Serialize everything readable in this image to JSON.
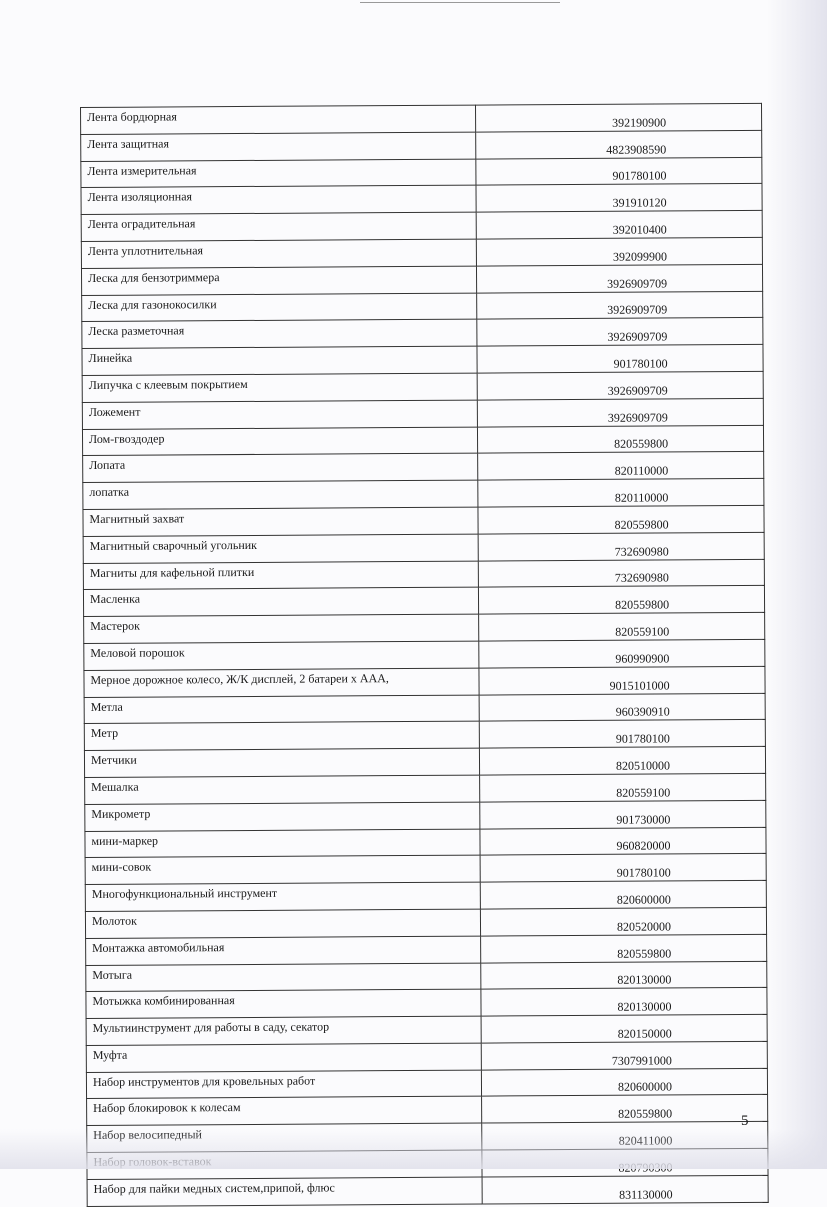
{
  "rows": [
    {
      "name": "Лента бордюрная",
      "code": "392190900"
    },
    {
      "name": "Лента защитная",
      "code": "4823908590"
    },
    {
      "name": "Лента измерительная",
      "code": "901780100"
    },
    {
      "name": "Лента изоляционная",
      "code": "391910120"
    },
    {
      "name": "Лента оградительная",
      "code": "392010400"
    },
    {
      "name": "Лента уплотнительная",
      "code": "392099900"
    },
    {
      "name": "Леска для бензотриммера",
      "code": "3926909709"
    },
    {
      "name": "Леска для газонокосилки",
      "code": "3926909709"
    },
    {
      "name": "Леска разметочная",
      "code": "3926909709"
    },
    {
      "name": "Линейка",
      "code": "901780100"
    },
    {
      "name": "Липучка с клеевым покрытием",
      "code": "3926909709"
    },
    {
      "name": "Ложемент",
      "code": "3926909709"
    },
    {
      "name": "Лом-гвоздодер",
      "code": "820559800"
    },
    {
      "name": "Лопата",
      "code": "820110000"
    },
    {
      "name": "лопатка",
      "code": "820110000"
    },
    {
      "name": "Магнитный захват",
      "code": "820559800"
    },
    {
      "name": "Магнитный сварочный угольник",
      "code": "732690980"
    },
    {
      "name": "Магниты для кафельной плитки",
      "code": "732690980"
    },
    {
      "name": "Масленка",
      "code": "820559800"
    },
    {
      "name": "Мастерок",
      "code": "820559100"
    },
    {
      "name": "Меловой порошок",
      "code": "960990900"
    },
    {
      "name": "Мерное дорожное колесо, Ж/К дисплей, 2 батареи х ААА,",
      "code": "9015101000"
    },
    {
      "name": "Метла",
      "code": "960390910"
    },
    {
      "name": "Метр",
      "code": "901780100"
    },
    {
      "name": "Метчики",
      "code": "820510000"
    },
    {
      "name": "Мешалка",
      "code": "820559100"
    },
    {
      "name": "Микрометр",
      "code": "901730000"
    },
    {
      "name": "мини-маркер",
      "code": "960820000"
    },
    {
      "name": "мини-совок",
      "code": "901780100"
    },
    {
      "name": "Многофункциональный инструмент",
      "code": "820600000"
    },
    {
      "name": "Молоток",
      "code": "820520000"
    },
    {
      "name": "Монтажка автомобильная",
      "code": "820559800"
    },
    {
      "name": "Мотыга",
      "code": "820130000"
    },
    {
      "name": "Мотыжка комбинированная",
      "code": "820130000"
    },
    {
      "name": "Мультиинструмент для работы в саду, секатор",
      "code": "820150000"
    },
    {
      "name": "Муфта",
      "code": "7307991000"
    },
    {
      "name": "Набор  инструментов для кровельных работ",
      "code": "820600000"
    },
    {
      "name": "Набор блокировок к колесам",
      "code": "820559800"
    },
    {
      "name": "Набор велосипедный",
      "code": "820411000"
    },
    {
      "name": "Набор головок-вставок",
      "code": "820790300"
    },
    {
      "name": "Набор для  пайки медных систем,припой, флюс",
      "code": "831130000"
    }
  ],
  "page_number": "5"
}
